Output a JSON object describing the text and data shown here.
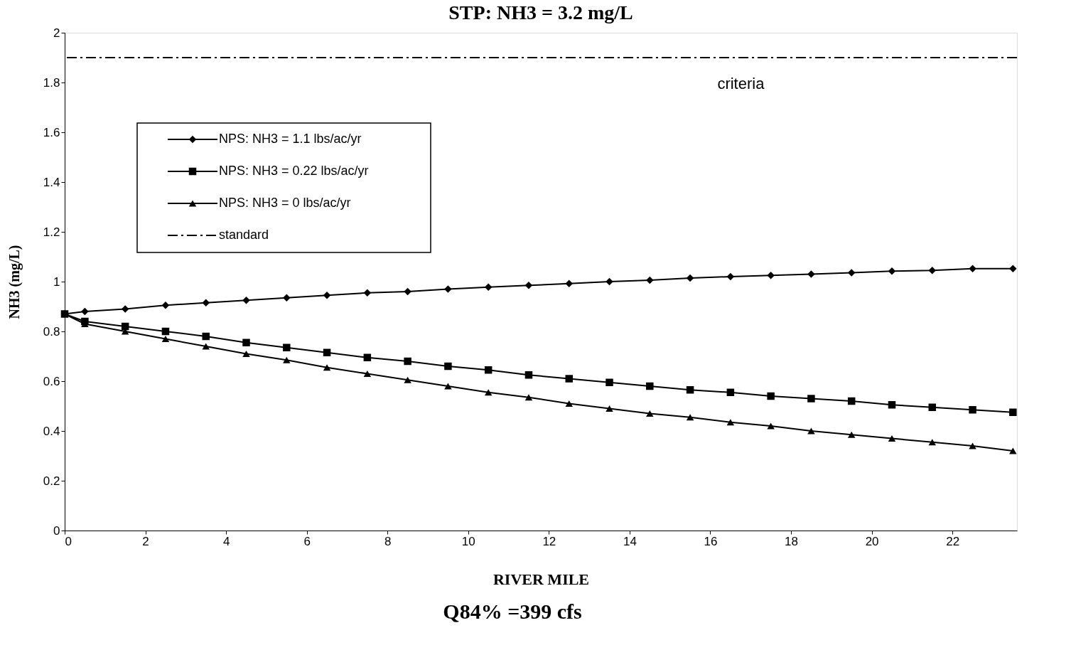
{
  "chart_data": {
    "type": "line",
    "title": "STP: NH3 = 3.2 mg/L",
    "xlabel": "RIVER MILE",
    "ylabel": "NH3 (mg/L)",
    "x": [
      0,
      0.5,
      1.5,
      2.5,
      3.5,
      4.5,
      5.5,
      6.5,
      7.5,
      8.5,
      9.5,
      10.5,
      11.5,
      12.5,
      13.5,
      14.5,
      15.5,
      16.5,
      17.5,
      18.5,
      19.5,
      20.5,
      21.5,
      22.5,
      23.5
    ],
    "series": [
      {
        "name": "NPS: NH3 = 1.1 lbs/ac/yr",
        "color": "#000000",
        "marker": "diamond",
        "values": [
          0.87,
          0.88,
          0.89,
          0.905,
          0.915,
          0.925,
          0.935,
          0.945,
          0.955,
          0.96,
          0.97,
          0.978,
          0.985,
          0.992,
          1.0,
          1.006,
          1.014,
          1.02,
          1.025,
          1.03,
          1.036,
          1.042,
          1.045,
          1.052,
          1.052
        ]
      },
      {
        "name": "NPS: NH3 = 0.22 lbs/ac/yr",
        "color": "#000000",
        "marker": "square",
        "values": [
          0.87,
          0.84,
          0.82,
          0.8,
          0.78,
          0.755,
          0.735,
          0.715,
          0.695,
          0.68,
          0.66,
          0.645,
          0.625,
          0.61,
          0.595,
          0.58,
          0.565,
          0.555,
          0.54,
          0.53,
          0.52,
          0.505,
          0.495,
          0.485,
          0.475
        ]
      },
      {
        "name": "NPS: NH3 = 0 lbs/ac/yr",
        "color": "#000000",
        "marker": "triangle",
        "values": [
          0.87,
          0.83,
          0.8,
          0.77,
          0.74,
          0.71,
          0.685,
          0.655,
          0.63,
          0.605,
          0.58,
          0.555,
          0.535,
          0.51,
          0.49,
          0.47,
          0.455,
          0.435,
          0.42,
          0.4,
          0.385,
          0.37,
          0.355,
          0.34,
          0.32
        ]
      }
    ],
    "ref_lines": [
      {
        "axis": "y",
        "value": 1.9,
        "label": "standard",
        "color": "#000000",
        "line_style": "dashed"
      }
    ],
    "annotations": [
      "criteria",
      "Q84% =399 cfs"
    ],
    "xlim": [
      0,
      23.6
    ],
    "xticks": [
      0,
      2,
      4,
      6,
      8,
      10,
      12,
      14,
      16,
      18,
      20,
      22
    ],
    "ylim": [
      0,
      2
    ],
    "yticks": [
      0,
      0.2,
      0.4,
      0.6,
      0.8,
      1,
      1.2,
      1.4,
      1.6,
      1.8,
      2
    ],
    "grid": false,
    "legend": "top left",
    "line_style": "solid"
  }
}
